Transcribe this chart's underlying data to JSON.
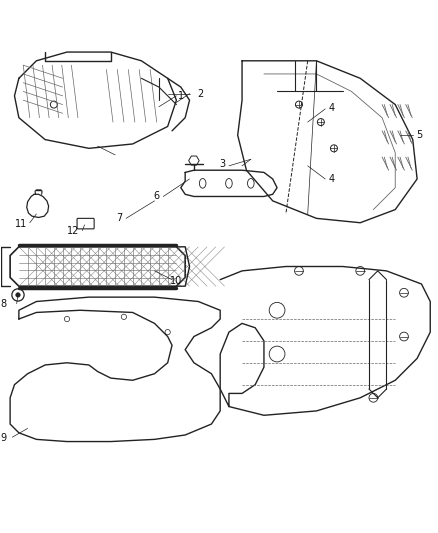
{
  "bg_color": "#ffffff",
  "line_color": "#666666",
  "dark_line": "#222222",
  "label_color": "#111111",
  "fig_width": 4.39,
  "fig_height": 5.33
}
